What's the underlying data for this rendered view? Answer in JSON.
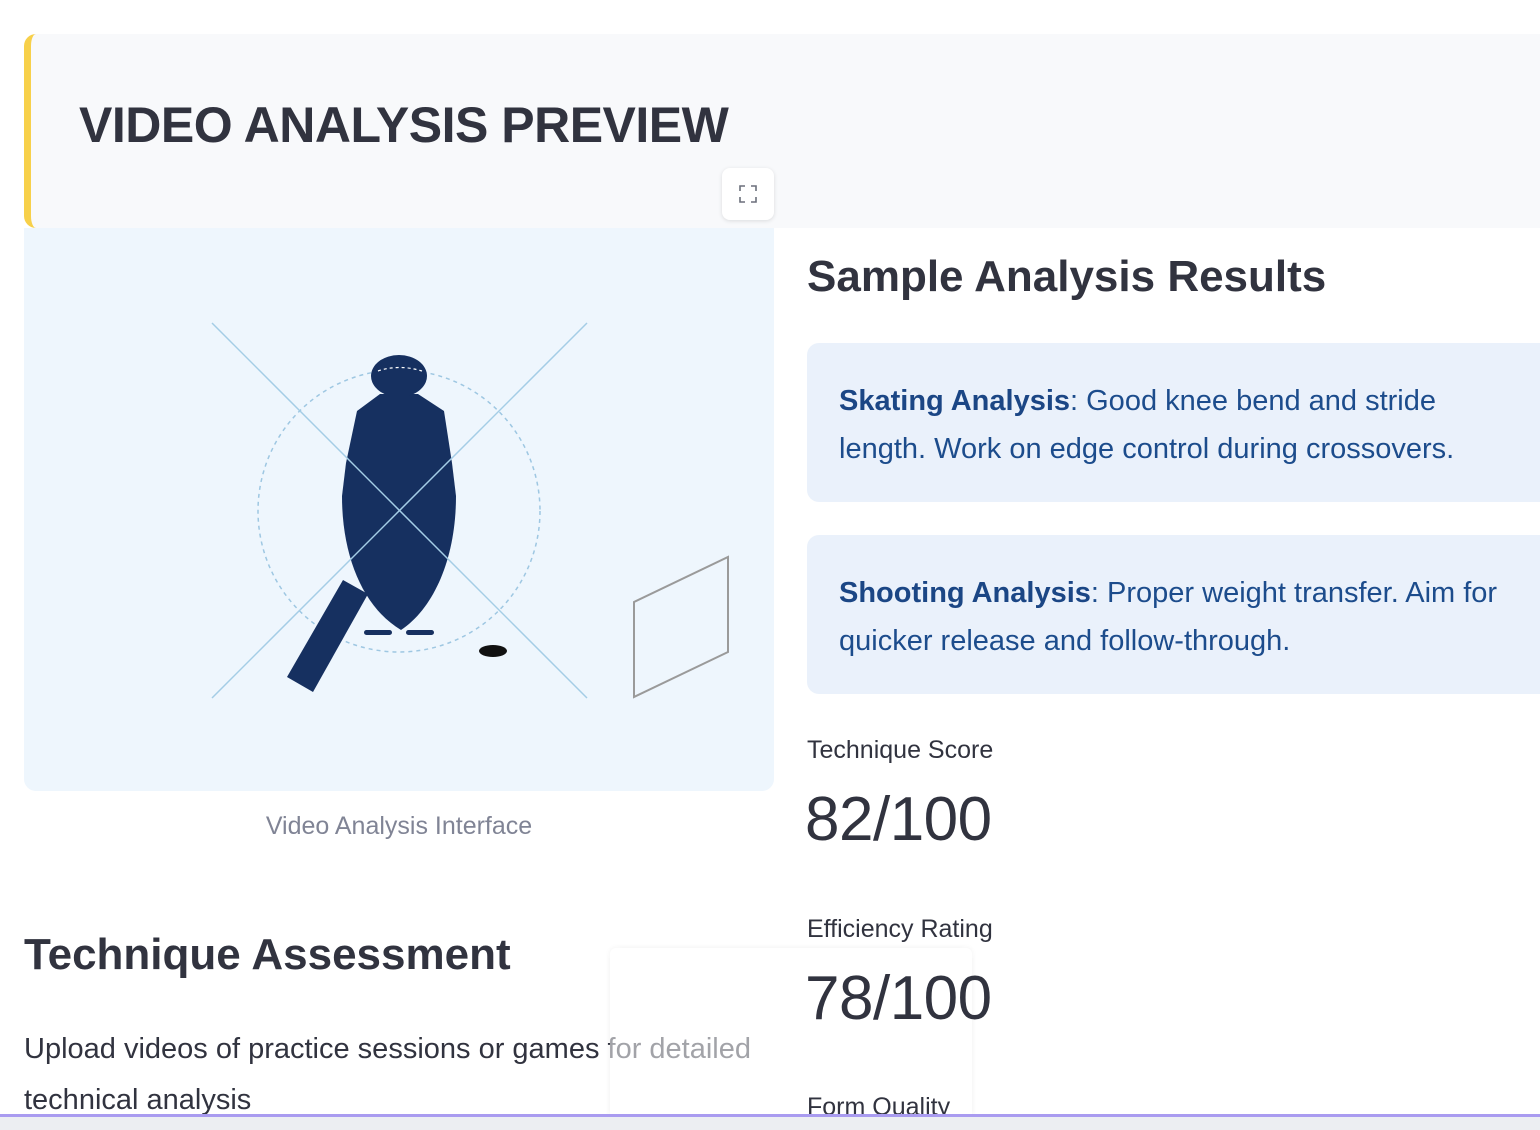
{
  "header": {
    "title": "VIDEO ANALYSIS PREVIEW",
    "accent_color": "#f7d04a"
  },
  "image": {
    "caption": "Video Analysis Interface",
    "fullscreen_icon": "expand-icon"
  },
  "assessment": {
    "title": "Technique Assessment",
    "body": "Upload videos of practice sessions or games for detailed technical analysis"
  },
  "results": {
    "title": "Sample Analysis Results",
    "cards": [
      {
        "label": "Skating Analysis",
        "text": ": Good knee bend and stride length. Work on edge control during crossovers."
      },
      {
        "label": "Shooting Analysis",
        "text": ": Proper weight transfer. Aim for quicker release and follow-through."
      }
    ],
    "metrics": [
      {
        "label": "Technique Score",
        "value": "82/100"
      },
      {
        "label": "Efficiency Rating",
        "value": "78/100"
      },
      {
        "label": "Form Quality",
        "value": ""
      }
    ]
  },
  "colors": {
    "card_bg": "#eaf1fb",
    "card_text": "#1c4c8c",
    "figure": "#163060",
    "panel_bg": "#eef6fd"
  }
}
